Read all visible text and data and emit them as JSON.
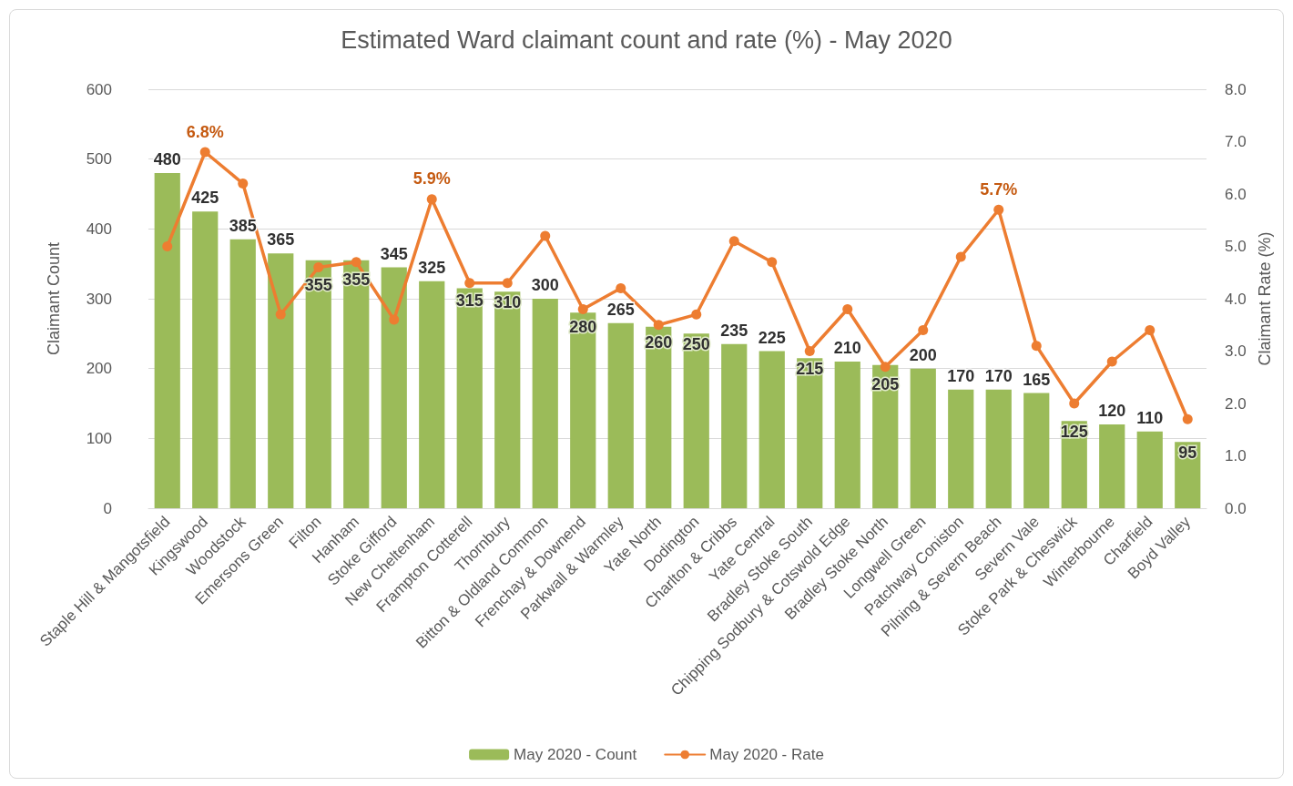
{
  "chart_data": {
    "type": "bar",
    "title": "Estimated Ward claimant count and rate (%) - May 2020",
    "ylabel": "Claimant Count",
    "y2label": "Claimant Rate (%)",
    "categories": [
      "Staple Hill & Mangotsfield",
      "Kingswood",
      "Woodstock",
      "Emersons Green",
      "Filton",
      "Hanham",
      "Stoke Gifford",
      "New Cheltenham",
      "Frampton Cotterell",
      "Thornbury",
      "Bitton & Oldland Common",
      "Frenchay & Downend",
      "Parkwall & Warmley",
      "Yate North",
      "Dodington",
      "Charlton & Cribbs",
      "Yate Central",
      "Bradley Stoke South",
      "Chipping Sodbury & Cotswold Edge",
      "Bradley Stoke North",
      "Longwell Green",
      "Patchway Coniston",
      "Pilning & Severn Beach",
      "Severn Vale",
      "Stoke Park & Cheswick",
      "Winterbourne",
      "Charfield",
      "Boyd Valley"
    ],
    "series": [
      {
        "name": "May 2020 - Count",
        "color": "#9bbb59",
        "values": [
          480,
          425,
          385,
          365,
          355,
          355,
          345,
          325,
          315,
          310,
          300,
          280,
          265,
          260,
          250,
          235,
          225,
          215,
          210,
          205,
          200,
          170,
          170,
          165,
          125,
          120,
          110,
          95
        ],
        "value_labels": [
          "480",
          "425",
          "385",
          "365",
          "355",
          "355",
          "345",
          "325",
          "315",
          "310",
          "300",
          "280",
          "265",
          "260",
          "250",
          "235",
          "225",
          "215",
          "210",
          "205",
          "200",
          "170",
          "170",
          "165",
          "125",
          "120",
          "110",
          "95"
        ]
      },
      {
        "name": "May 2020 - Rate",
        "type": "line",
        "axis": "y2",
        "color": "#ed7d31",
        "values": [
          5.0,
          6.8,
          6.2,
          3.7,
          4.6,
          4.7,
          3.6,
          5.9,
          4.3,
          4.3,
          5.2,
          3.8,
          4.2,
          3.5,
          3.7,
          5.1,
          4.7,
          3.0,
          3.8,
          2.7,
          3.4,
          4.8,
          5.7,
          3.1,
          2.0,
          2.8,
          3.4,
          1.7
        ],
        "value_labels": [
          null,
          "6.8%",
          null,
          null,
          null,
          null,
          null,
          "5.9%",
          null,
          null,
          null,
          null,
          null,
          null,
          null,
          null,
          null,
          null,
          null,
          null,
          null,
          null,
          "5.7%",
          null,
          null,
          null,
          null,
          null
        ]
      }
    ],
    "ylim": [
      0,
      600
    ],
    "yticks": [
      0,
      100,
      200,
      300,
      400,
      500,
      600
    ],
    "y2lim": [
      0,
      8
    ],
    "y2ticks": [
      {
        "value": 0,
        "label": "0.0"
      },
      {
        "value": 1,
        "label": "1.0"
      },
      {
        "value": 2,
        "label": "2.0"
      },
      {
        "value": 3,
        "label": "3.0"
      },
      {
        "value": 4,
        "label": "4.0"
      },
      {
        "value": 5,
        "label": "5.0"
      },
      {
        "value": 6,
        "label": "6.0"
      },
      {
        "value": 7,
        "label": "7.0"
      },
      {
        "value": 8,
        "label": "8.0"
      }
    ],
    "grid": "y",
    "legend": "bottom",
    "marker": "circle",
    "line_style": "solid"
  }
}
